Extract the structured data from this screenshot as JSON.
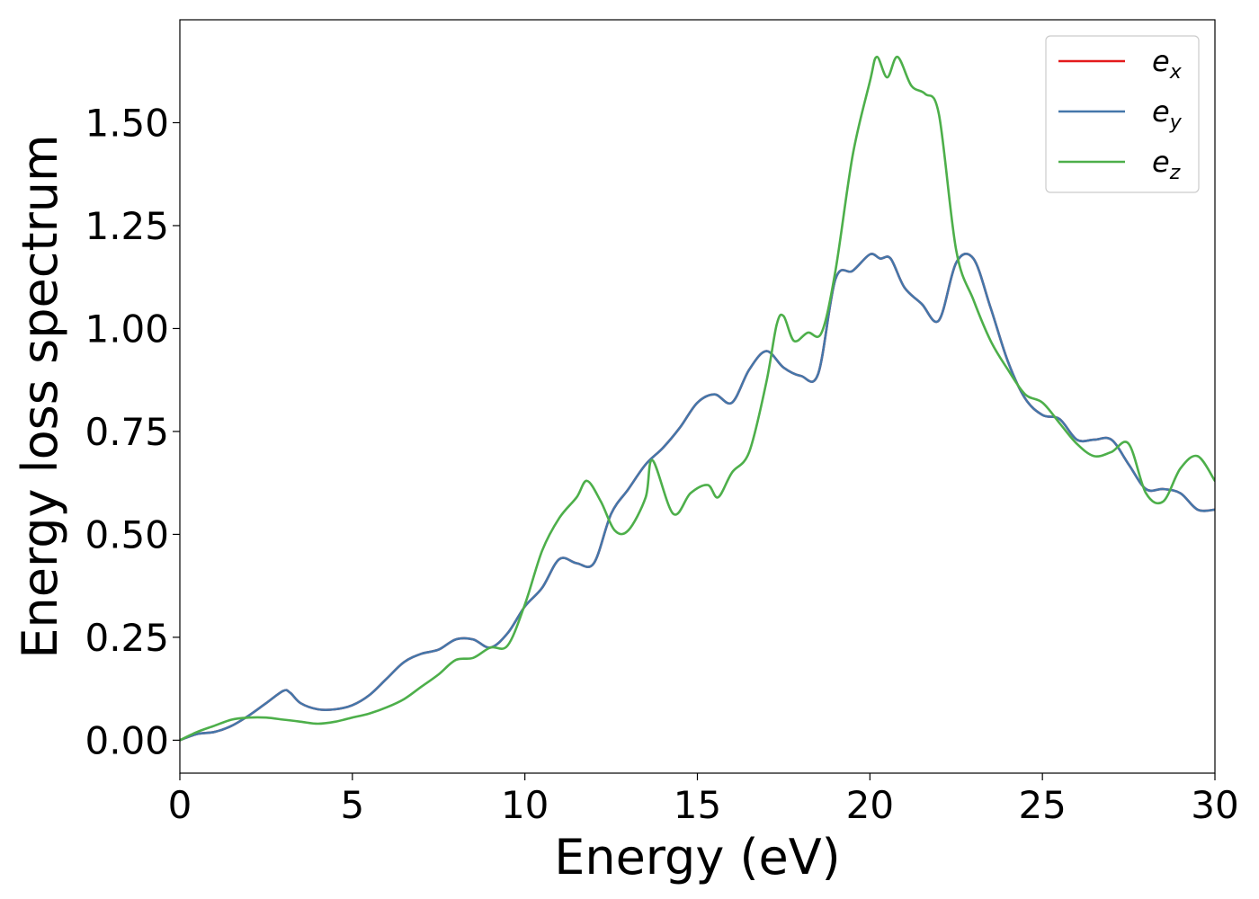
{
  "chart_data": {
    "type": "line",
    "title": "",
    "xlabel": "Energy (eV)",
    "ylabel": "Energy loss spectrum",
    "xlim": [
      0,
      30
    ],
    "ylim": [
      -0.08,
      1.75
    ],
    "xticks": [
      0,
      5,
      10,
      15,
      20,
      25,
      30
    ],
    "xtick_labels": [
      "0",
      "5",
      "10",
      "15",
      "20",
      "25",
      "30"
    ],
    "yticks": [
      0.0,
      0.25,
      0.5,
      0.75,
      1.0,
      1.25,
      1.5
    ],
    "ytick_labels": [
      "0.00",
      "0.25",
      "0.50",
      "0.75",
      "1.00",
      "1.25",
      "1.50"
    ],
    "grid": false,
    "legend_position": "top-right",
    "series": [
      {
        "name": "e_x",
        "legend_base": "e",
        "legend_sub": "x",
        "color": "#e41a1c",
        "x": [
          0,
          0.5,
          1,
          1.5,
          2,
          2.5,
          3,
          3.2,
          3.5,
          4,
          4.5,
          5,
          5.5,
          6,
          6.5,
          7,
          7.5,
          8,
          8.5,
          9,
          9.5,
          10,
          10.5,
          11,
          11.5,
          12,
          12.5,
          13,
          13.5,
          14,
          14.5,
          15,
          15.5,
          16,
          16.5,
          17,
          17.5,
          18,
          18.5,
          19,
          19.5,
          20,
          20.3,
          20.6,
          21,
          21.5,
          22,
          22.5,
          23,
          23.5,
          24,
          24.5,
          25,
          25.5,
          26,
          26.5,
          27,
          27.5,
          28,
          28.5,
          29,
          29.5,
          30
        ],
        "values": [
          0.0,
          0.015,
          0.02,
          0.035,
          0.06,
          0.09,
          0.12,
          0.115,
          0.09,
          0.075,
          0.075,
          0.085,
          0.11,
          0.15,
          0.19,
          0.21,
          0.22,
          0.245,
          0.245,
          0.225,
          0.26,
          0.325,
          0.37,
          0.44,
          0.43,
          0.43,
          0.55,
          0.61,
          0.67,
          0.71,
          0.76,
          0.82,
          0.84,
          0.82,
          0.9,
          0.945,
          0.905,
          0.885,
          0.89,
          1.12,
          1.14,
          1.18,
          1.17,
          1.17,
          1.1,
          1.06,
          1.02,
          1.16,
          1.17,
          1.05,
          0.92,
          0.83,
          0.79,
          0.78,
          0.73,
          0.73,
          0.73,
          0.67,
          0.61,
          0.61,
          0.6,
          0.56,
          0.56
        ]
      },
      {
        "name": "e_y",
        "legend_base": "e",
        "legend_sub": "y",
        "color": "#4477aa",
        "x": [
          0,
          0.5,
          1,
          1.5,
          2,
          2.5,
          3,
          3.2,
          3.5,
          4,
          4.5,
          5,
          5.5,
          6,
          6.5,
          7,
          7.5,
          8,
          8.5,
          9,
          9.5,
          10,
          10.5,
          11,
          11.5,
          12,
          12.5,
          13,
          13.5,
          14,
          14.5,
          15,
          15.5,
          16,
          16.5,
          17,
          17.5,
          18,
          18.5,
          19,
          19.5,
          20,
          20.3,
          20.6,
          21,
          21.5,
          22,
          22.5,
          23,
          23.5,
          24,
          24.5,
          25,
          25.5,
          26,
          26.5,
          27,
          27.5,
          28,
          28.5,
          29,
          29.5,
          30
        ],
        "values": [
          0.0,
          0.015,
          0.02,
          0.035,
          0.06,
          0.09,
          0.12,
          0.115,
          0.09,
          0.075,
          0.075,
          0.085,
          0.11,
          0.15,
          0.19,
          0.21,
          0.22,
          0.245,
          0.245,
          0.225,
          0.26,
          0.325,
          0.37,
          0.44,
          0.43,
          0.43,
          0.55,
          0.61,
          0.67,
          0.71,
          0.76,
          0.82,
          0.84,
          0.82,
          0.9,
          0.945,
          0.905,
          0.885,
          0.89,
          1.12,
          1.14,
          1.18,
          1.17,
          1.17,
          1.1,
          1.06,
          1.02,
          1.16,
          1.17,
          1.05,
          0.92,
          0.83,
          0.79,
          0.78,
          0.73,
          0.73,
          0.73,
          0.67,
          0.61,
          0.61,
          0.6,
          0.56,
          0.56
        ]
      },
      {
        "name": "e_z",
        "legend_base": "e",
        "legend_sub": "z",
        "color": "#4daf4a",
        "x": [
          0,
          0.5,
          1,
          1.5,
          2,
          2.5,
          3,
          3.5,
          4,
          4.5,
          5,
          5.5,
          6,
          6.5,
          7,
          7.5,
          8,
          8.5,
          9,
          9.5,
          10,
          10.5,
          11,
          11.5,
          11.8,
          12.2,
          12.6,
          13,
          13.5,
          13.7,
          14.3,
          14.8,
          15.3,
          15.6,
          16,
          16.5,
          17,
          17.3,
          17.5,
          17.8,
          18.2,
          18.6,
          19,
          19.5,
          20,
          20.2,
          20.5,
          20.8,
          21.2,
          21.6,
          22,
          22.5,
          23,
          23.5,
          24,
          24.5,
          25,
          25.5,
          26,
          26.5,
          27,
          27.5,
          28,
          28.5,
          29,
          29.5,
          30
        ],
        "values": [
          0.0,
          0.02,
          0.035,
          0.05,
          0.055,
          0.055,
          0.05,
          0.045,
          0.04,
          0.045,
          0.055,
          0.065,
          0.08,
          0.1,
          0.13,
          0.16,
          0.195,
          0.2,
          0.225,
          0.23,
          0.33,
          0.46,
          0.54,
          0.59,
          0.63,
          0.58,
          0.51,
          0.51,
          0.59,
          0.68,
          0.55,
          0.6,
          0.62,
          0.59,
          0.65,
          0.7,
          0.87,
          1.01,
          1.03,
          0.97,
          0.99,
          0.99,
          1.14,
          1.42,
          1.6,
          1.66,
          1.61,
          1.66,
          1.59,
          1.57,
          1.52,
          1.19,
          1.07,
          0.97,
          0.9,
          0.84,
          0.82,
          0.77,
          0.72,
          0.69,
          0.7,
          0.72,
          0.6,
          0.58,
          0.66,
          0.69,
          0.63
        ]
      }
    ]
  }
}
